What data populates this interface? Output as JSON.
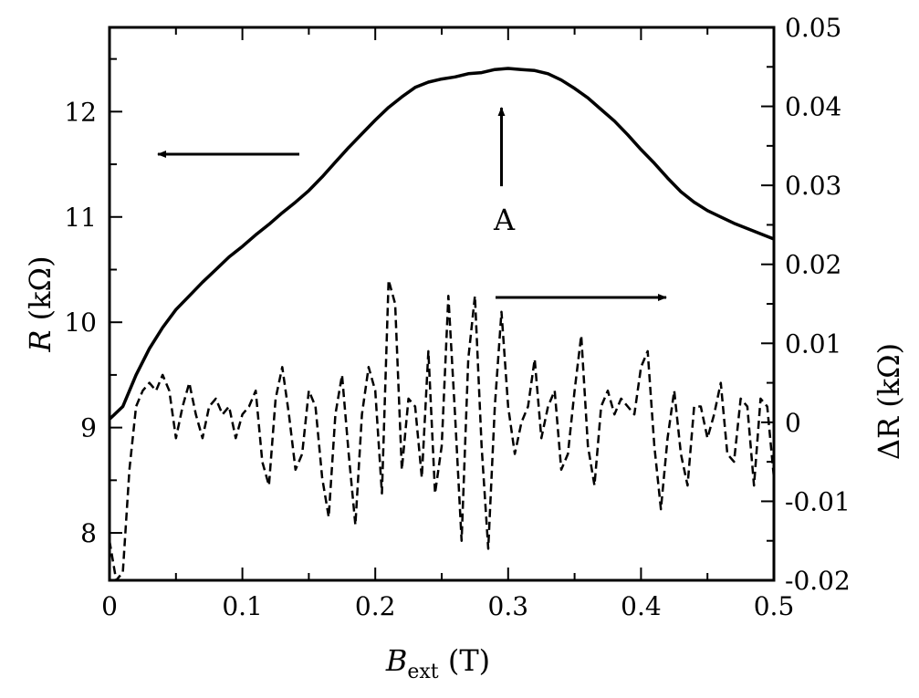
{
  "chart_data": {
    "type": "line",
    "title": "",
    "xlabel": {
      "main": "B",
      "sub": "ext",
      "unit": " (T)"
    },
    "ylabel_left": {
      "main": "R",
      "unit": " (kΩ)"
    },
    "ylabel_right": {
      "main": "ΔR",
      "unit": " (kΩ)"
    },
    "xlim": [
      0,
      0.5
    ],
    "ylim_left": [
      7.55,
      12.8
    ],
    "ylim_right": [
      -0.02,
      0.05
    ],
    "x_ticks": [
      "0",
      "0.1",
      "0.2",
      "0.3",
      "0.4",
      "0.5"
    ],
    "y_left_ticks": [
      "8",
      "9",
      "10",
      "11",
      "12"
    ],
    "y_right_ticks": [
      "-0.02",
      "-0.01",
      "0",
      "0.01",
      "0.02",
      "0.03",
      "0.04",
      "0.05"
    ],
    "grid": false,
    "legend": "none",
    "series": [
      {
        "axis": "left",
        "style": "solid",
        "x": [
          0,
          0.01,
          0.02,
          0.03,
          0.04,
          0.05,
          0.06,
          0.07,
          0.08,
          0.09,
          0.1,
          0.11,
          0.12,
          0.13,
          0.14,
          0.15,
          0.16,
          0.17,
          0.18,
          0.19,
          0.2,
          0.21,
          0.22,
          0.23,
          0.24,
          0.25,
          0.26,
          0.27,
          0.28,
          0.29,
          0.3,
          0.31,
          0.32,
          0.33,
          0.34,
          0.35,
          0.36,
          0.37,
          0.38,
          0.39,
          0.4,
          0.41,
          0.42,
          0.43,
          0.44,
          0.45,
          0.46,
          0.47,
          0.48,
          0.49,
          0.5
        ],
        "values": [
          9.08,
          9.2,
          9.5,
          9.75,
          9.95,
          10.12,
          10.25,
          10.38,
          10.5,
          10.62,
          10.72,
          10.83,
          10.93,
          11.04,
          11.14,
          11.25,
          11.38,
          11.52,
          11.66,
          11.79,
          11.92,
          12.04,
          12.14,
          12.23,
          12.28,
          12.31,
          12.33,
          12.36,
          12.37,
          12.4,
          12.41,
          12.4,
          12.39,
          12.36,
          12.3,
          12.22,
          12.13,
          12.02,
          11.91,
          11.78,
          11.64,
          11.51,
          11.37,
          11.24,
          11.14,
          11.06,
          11.0,
          10.94,
          10.89,
          10.84,
          10.79
        ]
      },
      {
        "axis": "right",
        "style": "dashed",
        "x": [
          0,
          0.005,
          0.01,
          0.015,
          0.02,
          0.025,
          0.03,
          0.035,
          0.04,
          0.045,
          0.05,
          0.055,
          0.06,
          0.065,
          0.07,
          0.075,
          0.08,
          0.085,
          0.09,
          0.095,
          0.1,
          0.105,
          0.11,
          0.115,
          0.12,
          0.125,
          0.13,
          0.135,
          0.14,
          0.145,
          0.15,
          0.155,
          0.16,
          0.165,
          0.17,
          0.175,
          0.18,
          0.185,
          0.19,
          0.195,
          0.2,
          0.205,
          0.21,
          0.215,
          0.22,
          0.225,
          0.23,
          0.235,
          0.24,
          0.245,
          0.25,
          0.255,
          0.26,
          0.265,
          0.27,
          0.275,
          0.28,
          0.285,
          0.29,
          0.295,
          0.3,
          0.305,
          0.31,
          0.315,
          0.32,
          0.325,
          0.33,
          0.335,
          0.34,
          0.345,
          0.35,
          0.355,
          0.36,
          0.365,
          0.37,
          0.375,
          0.38,
          0.385,
          0.39,
          0.395,
          0.4,
          0.405,
          0.41,
          0.415,
          0.42,
          0.425,
          0.43,
          0.435,
          0.44,
          0.445,
          0.45,
          0.455,
          0.46,
          0.465,
          0.47,
          0.475,
          0.48,
          0.485,
          0.49,
          0.495,
          0.5
        ],
        "values": [
          -0.015,
          -0.02,
          -0.019,
          -0.006,
          0.002,
          0.004,
          0.005,
          0.004,
          0.006,
          0.004,
          -0.002,
          0.002,
          0.005,
          0.001,
          -0.002,
          0.002,
          0.003,
          0.001,
          0.002,
          -0.002,
          0.001,
          0.002,
          0.004,
          -0.005,
          -0.008,
          0.003,
          0.007,
          0.001,
          -0.006,
          -0.004,
          0.004,
          0.002,
          -0.007,
          -0.012,
          0.001,
          0.006,
          -0.004,
          -0.013,
          0.001,
          0.007,
          0.004,
          -0.009,
          0.018,
          0.015,
          -0.006,
          0.003,
          0.002,
          -0.007,
          0.009,
          -0.009,
          -0.003,
          0.016,
          0.001,
          -0.015,
          0.008,
          0.016,
          -0.003,
          -0.016,
          0.002,
          0.014,
          0.002,
          -0.004,
          0.0,
          0.002,
          0.008,
          -0.002,
          0.002,
          0.004,
          -0.006,
          -0.004,
          0.004,
          0.011,
          -0.003,
          -0.008,
          0.002,
          0.004,
          0.001,
          0.003,
          0.002,
          0.001,
          0.007,
          0.009,
          -0.003,
          -0.011,
          -0.002,
          0.004,
          -0.004,
          -0.008,
          0.002,
          0.002,
          -0.002,
          0.001,
          0.005,
          -0.004,
          -0.005,
          0.003,
          0.002,
          -0.008,
          0.003,
          0.002,
          -0.007
        ]
      }
    ],
    "annotations": [
      {
        "label": "A",
        "x": 0.295,
        "y_left": 11.95
      }
    ]
  }
}
